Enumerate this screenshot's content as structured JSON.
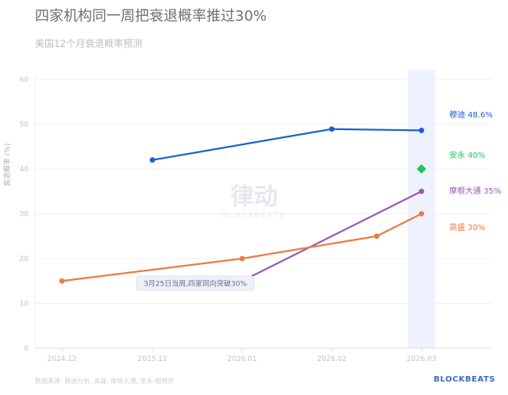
{
  "header": {
    "title": "四家机构同一周把衰退概率推过30%",
    "subtitle": "美国12个月衰退概率预测"
  },
  "footer": {
    "source": "数据来源: 穆迪分析, 高盛, 摩根大通, 安永-帕特农",
    "brand": "BLOCKBEATS"
  },
  "watermark": {
    "text": "律动",
    "sub": "BLOCKBEATS"
  },
  "colors": {
    "moody": "#1a5fd6",
    "ey": "#22c55e",
    "jpm": "#9b59b6",
    "gs": "#ee7a43",
    "highlight": "#eef2ff"
  },
  "chart_data": {
    "type": "line",
    "title": "四家机构同一周把衰退概率推过30%",
    "subtitle": "美国12个月衰退概率预测",
    "ylabel": "衰退概率 (%)",
    "xlabel": "",
    "ylim": [
      0,
      60
    ],
    "yticks": [
      0,
      10,
      20,
      30,
      40,
      50,
      60
    ],
    "xticks": [
      "2024.12",
      "2025.12",
      "2026.01",
      "2026.02",
      "2026.03"
    ],
    "grid": true,
    "highlight_band": "2026.03",
    "annotation": "3月25日当周,四家同向突破30%",
    "series": [
      {
        "name": "穆迪",
        "label": "穆迪 48.6%",
        "color": "#1a5fd6",
        "points": [
          {
            "x": 1,
            "y": 42
          },
          {
            "x": 3,
            "y": 48.9
          },
          {
            "x": 4,
            "y": 48.6
          }
        ]
      },
      {
        "name": "安永",
        "label": "安永 40%",
        "color": "#22c55e",
        "marker": "diamond",
        "points": [
          {
            "x": 4,
            "y": 40
          }
        ]
      },
      {
        "name": "摩根大通",
        "label": "摩根大通 35%",
        "color": "#9b59b6",
        "points": [
          {
            "x": 2,
            "y": 15
          },
          {
            "x": 4,
            "y": 35
          }
        ]
      },
      {
        "name": "高盛",
        "label": "高盛 30%",
        "color": "#ee7a43",
        "points": [
          {
            "x": 0,
            "y": 15
          },
          {
            "x": 2,
            "y": 20
          },
          {
            "x": 3.5,
            "y": 25
          },
          {
            "x": 4,
            "y": 30
          }
        ]
      }
    ]
  }
}
